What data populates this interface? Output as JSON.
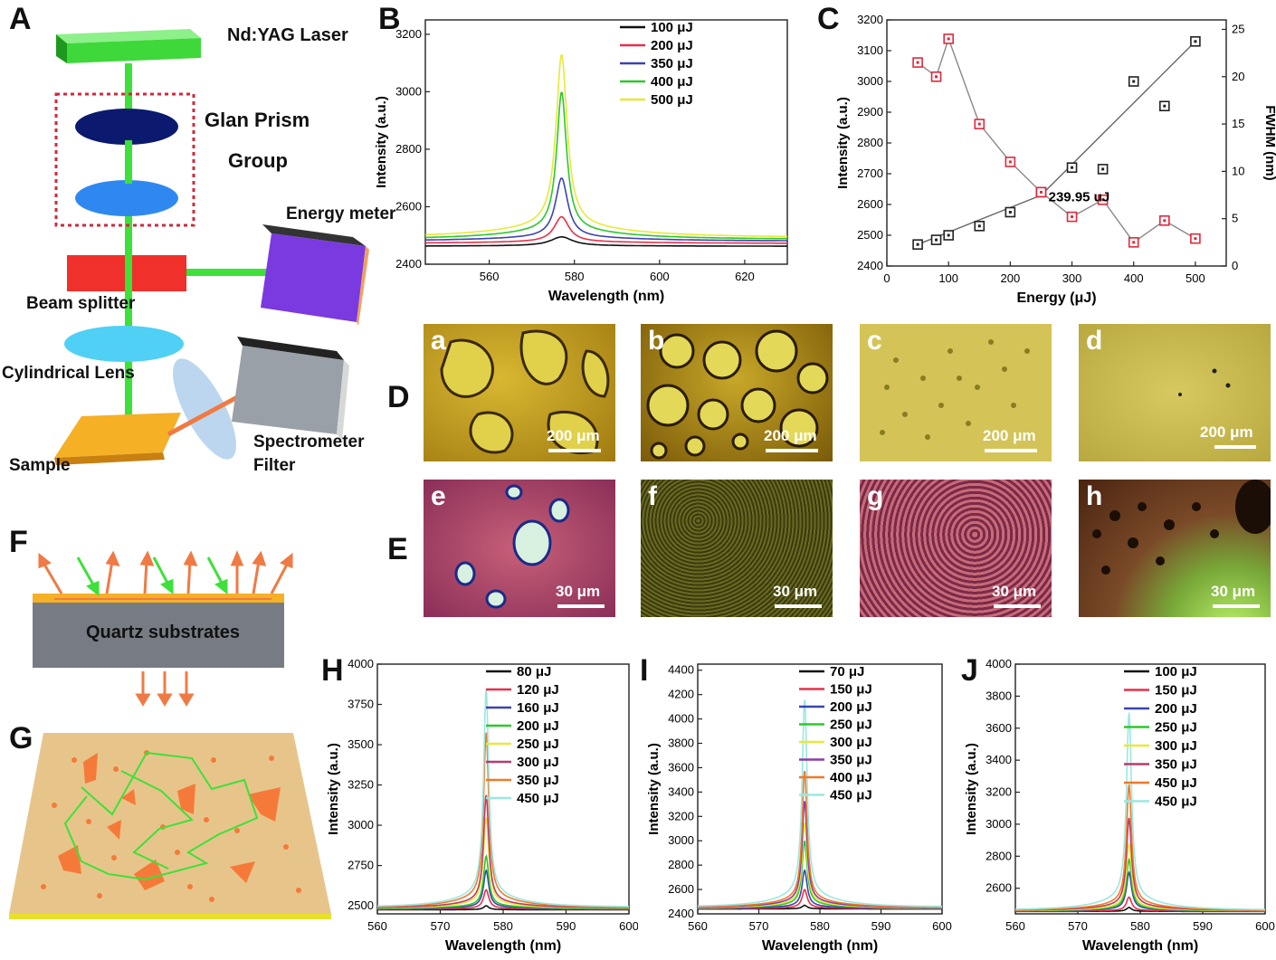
{
  "panels": {
    "A": "A",
    "B": "B",
    "C": "C",
    "D": "D",
    "E": "E",
    "F": "F",
    "G": "G",
    "H": "H",
    "I": "I",
    "J": "J"
  },
  "setup": {
    "laser": "Nd:YAG Laser",
    "prism_line1": "Glan Prism",
    "prism_line2": "Group",
    "energy_meter": "Energy meter",
    "beam_splitter": "Beam splitter",
    "cyl_lens": "Cylindrical Lens",
    "sample": "Sample",
    "spectrometer": "Spectrometer",
    "filter": "Filter",
    "quartz": "Quartz substrates"
  },
  "micrographs": [
    {
      "letter": "a",
      "scale": "200 μm"
    },
    {
      "letter": "b",
      "scale": "200 μm"
    },
    {
      "letter": "c",
      "scale": "200 μm"
    },
    {
      "letter": "d",
      "scale": "200 μm"
    },
    {
      "letter": "e",
      "scale": "30 μm"
    },
    {
      "letter": "f",
      "scale": "30 μm"
    },
    {
      "letter": "g",
      "scale": "30 μm"
    },
    {
      "letter": "h",
      "scale": "30 μm"
    }
  ],
  "colors": {
    "laser_green": "#3ee03a",
    "prism_dark": "#0b1a6e",
    "prism_blue": "#2f88f0",
    "splitter_red": "#f0302a",
    "lens_cyan": "#4fd0f4",
    "sample_yellow": "#f5b026",
    "arrow_orange": "#f07a44",
    "dashed_red": "#d0283c"
  },
  "chart_data": [
    {
      "id": "B",
      "type": "line",
      "xlabel": "Wavelength (nm)",
      "ylabel": "Intensity (a.u.)",
      "xlim": [
        545,
        630
      ],
      "ylim": [
        2400,
        3250
      ],
      "xticks": [
        560,
        580,
        600,
        620
      ],
      "yticks": [
        2400,
        2600,
        2800,
        3000,
        3200
      ],
      "peak_x": 577,
      "legend_position": "top-right",
      "series": [
        {
          "name": "100 μJ",
          "color": "#111111",
          "baseline": 2462,
          "peak": 2495,
          "width": 9
        },
        {
          "name": "200 μJ",
          "color": "#e8304a",
          "baseline": 2472,
          "peak": 2565,
          "width": 6
        },
        {
          "name": "350 μJ",
          "color": "#3a44b0",
          "baseline": 2480,
          "peak": 2700,
          "width": 5
        },
        {
          "name": "400 μJ",
          "color": "#2cc82c",
          "baseline": 2486,
          "peak": 3000,
          "width": 4
        },
        {
          "name": "500 μJ",
          "color": "#e8e83a",
          "baseline": 2492,
          "peak": 3130,
          "width": 4.5
        }
      ]
    },
    {
      "id": "C",
      "type": "scatter",
      "xlabel": "Energy (μJ)",
      "ylabel": "Intensity (a.u.)",
      "y2label": "FWHM (nm)",
      "xlim": [
        0,
        550
      ],
      "ylim": [
        2400,
        3200
      ],
      "y2lim": [
        0,
        26
      ],
      "xticks": [
        0,
        100,
        200,
        300,
        400,
        500
      ],
      "yticks": [
        2400,
        2500,
        2600,
        2700,
        2800,
        2900,
        3000,
        3100,
        3200
      ],
      "y2ticks": [
        0,
        5,
        10,
        15,
        20,
        25
      ],
      "annotation": "239.95 uJ",
      "series": [
        {
          "name": "Intensity",
          "color": "#222222",
          "points": [
            [
              50,
              2470
            ],
            [
              80,
              2485
            ],
            [
              100,
              2500
            ],
            [
              150,
              2530
            ],
            [
              200,
              2575
            ],
            [
              250,
              2640
            ],
            [
              300,
              2720
            ],
            [
              350,
              2715
            ],
            [
              400,
              3000
            ],
            [
              450,
              2920
            ],
            [
              500,
              3130
            ]
          ],
          "fit": [
            [
              50,
              2470
            ],
            [
              250,
              2630
            ],
            [
              500,
              3130
            ]
          ]
        },
        {
          "name": "FWHM",
          "color": "#e0283c",
          "points": [
            [
              50,
              21.5
            ],
            [
              80,
              20
            ],
            [
              100,
              24
            ],
            [
              150,
              15
            ],
            [
              200,
              11
            ],
            [
              250,
              7.8
            ],
            [
              300,
              5.2
            ],
            [
              350,
              7
            ],
            [
              400,
              2.5
            ],
            [
              450,
              4.8
            ],
            [
              500,
              2.9
            ]
          ]
        }
      ]
    },
    {
      "id": "H",
      "type": "line",
      "xlabel": "Wavelength (nm)",
      "ylabel": "Intensity (a.u.)",
      "xlim": [
        560,
        600
      ],
      "ylim": [
        2450,
        4000
      ],
      "xticks": [
        560,
        570,
        580,
        590,
        600
      ],
      "yticks": [
        2500,
        2750,
        3000,
        3250,
        3500,
        3750,
        4000
      ],
      "peak_x": 577.3,
      "legend_position": "top-right",
      "series": [
        {
          "name": "80 μJ",
          "color": "#111111",
          "baseline": 2475,
          "peak": 2500
        },
        {
          "name": "120 μJ",
          "color": "#e8304a",
          "baseline": 2478,
          "peak": 2600
        },
        {
          "name": "160 μJ",
          "color": "#3a44b0",
          "baseline": 2480,
          "peak": 2720
        },
        {
          "name": "200 μJ",
          "color": "#2cc82c",
          "baseline": 2482,
          "peak": 2810
        },
        {
          "name": "250 μJ",
          "color": "#e8e83a",
          "baseline": 2484,
          "peak": 3050
        },
        {
          "name": "300 μJ",
          "color": "#b83a6e",
          "baseline": 2486,
          "peak": 3190
        },
        {
          "name": "350 μJ",
          "color": "#f07a2a",
          "baseline": 2488,
          "peak": 3580
        },
        {
          "name": "450 μJ",
          "color": "#9ae8e0",
          "baseline": 2490,
          "peak": 3850
        }
      ]
    },
    {
      "id": "I",
      "type": "line",
      "xlabel": "Wavelength (nm)",
      "ylabel": "Intensity (a.u.)",
      "xlim": [
        560,
        600
      ],
      "ylim": [
        2400,
        4450
      ],
      "xticks": [
        560,
        570,
        580,
        590,
        600
      ],
      "yticks": [
        2400,
        2600,
        2800,
        3000,
        3200,
        3400,
        3600,
        3800,
        4000,
        4200,
        4400
      ],
      "peak_x": 577.5,
      "legend_position": "top-right",
      "series": [
        {
          "name": "70 μJ",
          "color": "#111111",
          "baseline": 2440,
          "peak": 2470
        },
        {
          "name": "150 μJ",
          "color": "#e8304a",
          "baseline": 2442,
          "peak": 2600
        },
        {
          "name": "200 μJ",
          "color": "#3a44b0",
          "baseline": 2444,
          "peak": 2760
        },
        {
          "name": "250 μJ",
          "color": "#2cc82c",
          "baseline": 2446,
          "peak": 3000
        },
        {
          "name": "300 μJ",
          "color": "#e8e83a",
          "baseline": 2448,
          "peak": 3150
        },
        {
          "name": "350 μJ",
          "color": "#8a3ab0",
          "baseline": 2450,
          "peak": 3330
        },
        {
          "name": "400 μJ",
          "color": "#f07a2a",
          "baseline": 2452,
          "peak": 3580
        },
        {
          "name": "450 μJ",
          "color": "#9ae8e0",
          "baseline": 2454,
          "peak": 4170
        }
      ]
    },
    {
      "id": "J",
      "type": "line",
      "xlabel": "Wavelength (nm)",
      "ylabel": "Intensity (a.u.)",
      "xlim": [
        560,
        600
      ],
      "ylim": [
        2440,
        4000
      ],
      "xticks": [
        560,
        570,
        580,
        590,
        600
      ],
      "yticks": [
        2600,
        2800,
        3000,
        3200,
        3400,
        3600,
        3800,
        4000
      ],
      "peak_x": 578.2,
      "legend_position": "top-right",
      "series": [
        {
          "name": "100 μJ",
          "color": "#111111",
          "baseline": 2455,
          "peak": 2480
        },
        {
          "name": "150 μJ",
          "color": "#e8304a",
          "baseline": 2456,
          "peak": 2545
        },
        {
          "name": "200 μJ",
          "color": "#3a44b0",
          "baseline": 2457,
          "peak": 2700
        },
        {
          "name": "250 μJ",
          "color": "#2cc82c",
          "baseline": 2458,
          "peak": 2780
        },
        {
          "name": "300 μJ",
          "color": "#e8e83a",
          "baseline": 2459,
          "peak": 2880
        },
        {
          "name": "350 μJ",
          "color": "#b83a6e",
          "baseline": 2460,
          "peak": 3040
        },
        {
          "name": "450 μJ",
          "color": "#f07a2a",
          "baseline": 2461,
          "peak": 3250
        },
        {
          "name": "450 μJ",
          "color": "#9ae8e0",
          "baseline": 2462,
          "peak": 3700
        }
      ]
    }
  ]
}
